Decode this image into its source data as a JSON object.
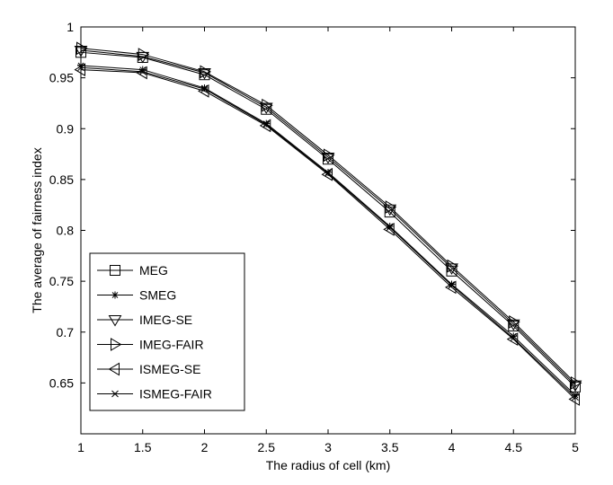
{
  "chart_data": {
    "type": "line",
    "title": "",
    "xlabel": "The radius of cell (km)",
    "ylabel": "The average of fairness index",
    "xlim": [
      1,
      5
    ],
    "ylim": [
      0.6,
      1.0
    ],
    "x_ticks": [
      "1",
      "1.5",
      "2",
      "2.5",
      "3",
      "3.5",
      "4",
      "4.5",
      "5"
    ],
    "y_ticks": [
      "0.65",
      "0.7",
      "0.75",
      "0.8",
      "0.85",
      "0.9",
      "0.95",
      "1"
    ],
    "grid": false,
    "legend_position": "bottom-left",
    "line_color": "#000000",
    "x": [
      1,
      1.5,
      2,
      2.5,
      3,
      3.5,
      4,
      4.5,
      5
    ],
    "series": [
      {
        "name": "MEG",
        "marker": "square",
        "values": [
          0.975,
          0.97,
          0.953,
          0.919,
          0.87,
          0.818,
          0.76,
          0.706,
          0.646
        ]
      },
      {
        "name": "SMEG",
        "marker": "star",
        "values": [
          0.962,
          0.958,
          0.94,
          0.905,
          0.857,
          0.804,
          0.747,
          0.696,
          0.638
        ]
      },
      {
        "name": "IMEG-SE",
        "marker": "triangle-down",
        "values": [
          0.977,
          0.971,
          0.955,
          0.921,
          0.872,
          0.821,
          0.763,
          0.708,
          0.648
        ]
      },
      {
        "name": "IMEG-FAIR",
        "marker": "triangle-right",
        "values": [
          0.979,
          0.973,
          0.956,
          0.923,
          0.874,
          0.823,
          0.765,
          0.71,
          0.65
        ]
      },
      {
        "name": "ISMEG-SE",
        "marker": "triangle-left",
        "values": [
          0.958,
          0.955,
          0.937,
          0.903,
          0.855,
          0.801,
          0.744,
          0.693,
          0.634
        ]
      },
      {
        "name": "ISMEG-FAIR",
        "marker": "x",
        "values": [
          0.96,
          0.956,
          0.939,
          0.904,
          0.856,
          0.803,
          0.746,
          0.694,
          0.636
        ]
      }
    ]
  }
}
